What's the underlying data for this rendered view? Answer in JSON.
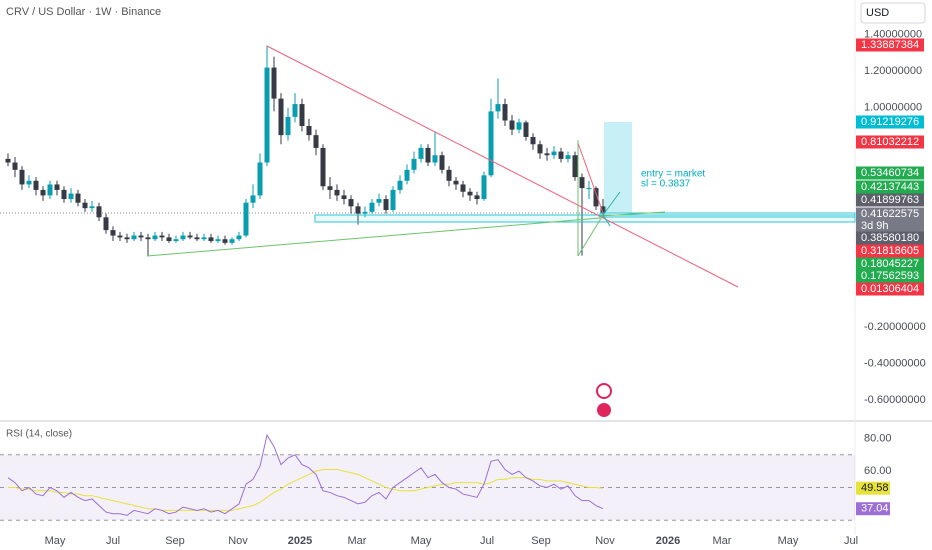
{
  "header": {
    "symbol": "CRV / US Dollar · 1W · Binance",
    "currency": "USD"
  },
  "time_axis": [
    "May",
    "Jul",
    "Sep",
    "Nov",
    "2025",
    "Mar",
    "May",
    "Jul",
    "Sep",
    "Nov",
    "2026",
    "Mar",
    "May",
    "Jul"
  ],
  "chart_data": [
    {
      "type": "candlestick",
      "ylim": [
        -0.71,
        1.59
      ],
      "yticks": [
        {
          "value": 1.4,
          "label": "1.40000000"
        },
        {
          "value": 1.2,
          "label": "1.20000000"
        },
        {
          "value": 1.0,
          "label": "1.00000000"
        },
        {
          "value": -0.2,
          "label": "-0.20000000"
        },
        {
          "value": -0.4,
          "label": "-0.40000000"
        },
        {
          "value": -0.6,
          "label": "-0.60000000"
        }
      ],
      "up_color": "#089eb0",
      "down_color": "#363a45",
      "open": [
        0.72,
        0.7,
        0.66,
        0.58,
        0.6,
        0.55,
        0.52,
        0.58,
        0.55,
        0.5,
        0.53,
        0.48,
        0.45,
        0.46,
        0.4,
        0.33,
        0.3,
        0.29,
        0.28,
        0.3,
        0.29,
        0.28,
        0.3,
        0.29,
        0.27,
        0.28,
        0.3,
        0.29,
        0.28,
        0.29,
        0.27,
        0.28,
        0.26,
        0.28,
        0.3,
        0.48,
        0.52,
        0.7,
        1.22,
        1.05,
        0.85,
        0.95,
        1.02,
        0.9,
        0.85,
        0.78,
        0.57,
        0.55,
        0.52,
        0.5,
        0.46,
        0.42,
        0.43,
        0.48,
        0.5,
        0.44,
        0.55,
        0.6,
        0.66,
        0.72,
        0.78,
        0.7,
        0.74,
        0.66,
        0.6,
        0.58,
        0.54,
        0.52,
        0.5,
        0.63,
        0.98,
        1.02,
        0.93,
        0.88,
        0.92,
        0.84,
        0.8,
        0.75,
        0.74,
        0.76,
        0.72,
        0.74,
        0.62,
        0.56,
        0.56,
        0.46
      ],
      "high": [
        0.75,
        0.73,
        0.68,
        0.63,
        0.62,
        0.57,
        0.6,
        0.6,
        0.57,
        0.56,
        0.55,
        0.5,
        0.49,
        0.48,
        0.42,
        0.35,
        0.32,
        0.31,
        0.32,
        0.32,
        0.31,
        0.32,
        0.32,
        0.31,
        0.3,
        0.32,
        0.32,
        0.31,
        0.31,
        0.31,
        0.3,
        0.3,
        0.29,
        0.32,
        0.5,
        0.58,
        0.75,
        1.34,
        1.28,
        1.08,
        1.0,
        1.08,
        1.05,
        0.94,
        0.88,
        0.8,
        0.62,
        0.58,
        0.55,
        0.52,
        0.48,
        0.46,
        0.5,
        0.53,
        0.52,
        0.57,
        0.63,
        0.69,
        0.76,
        0.8,
        0.8,
        0.87,
        0.76,
        0.68,
        0.62,
        0.6,
        0.56,
        0.54,
        0.65,
        1.05,
        1.16,
        1.05,
        0.96,
        0.94,
        0.93,
        0.86,
        0.82,
        0.78,
        0.79,
        0.78,
        0.76,
        0.76,
        0.64,
        0.6,
        0.57,
        0.5
      ],
      "low": [
        0.68,
        0.62,
        0.55,
        0.56,
        0.52,
        0.49,
        0.5,
        0.52,
        0.48,
        0.48,
        0.46,
        0.43,
        0.43,
        0.38,
        0.31,
        0.27,
        0.27,
        0.26,
        0.27,
        0.27,
        0.19,
        0.27,
        0.27,
        0.26,
        0.26,
        0.27,
        0.28,
        0.27,
        0.27,
        0.26,
        0.26,
        0.25,
        0.25,
        0.27,
        0.29,
        0.45,
        0.5,
        0.68,
        0.98,
        0.8,
        0.82,
        0.92,
        0.87,
        0.82,
        0.74,
        0.55,
        0.5,
        0.49,
        0.47,
        0.42,
        0.36,
        0.4,
        0.42,
        0.46,
        0.42,
        0.43,
        0.53,
        0.58,
        0.64,
        0.7,
        0.68,
        0.68,
        0.64,
        0.57,
        0.55,
        0.51,
        0.49,
        0.47,
        0.49,
        0.62,
        0.94,
        0.9,
        0.85,
        0.86,
        0.82,
        0.77,
        0.72,
        0.71,
        0.72,
        0.7,
        0.7,
        0.6,
        0.19,
        0.5,
        0.44,
        0.4
      ],
      "close": [
        0.7,
        0.66,
        0.58,
        0.6,
        0.55,
        0.52,
        0.58,
        0.55,
        0.5,
        0.53,
        0.48,
        0.45,
        0.46,
        0.4,
        0.33,
        0.3,
        0.29,
        0.28,
        0.3,
        0.29,
        0.28,
        0.3,
        0.29,
        0.27,
        0.28,
        0.3,
        0.29,
        0.28,
        0.29,
        0.27,
        0.28,
        0.26,
        0.28,
        0.3,
        0.48,
        0.52,
        0.7,
        1.22,
        1.05,
        0.85,
        0.95,
        1.02,
        0.9,
        0.85,
        0.78,
        0.57,
        0.55,
        0.52,
        0.5,
        0.46,
        0.42,
        0.43,
        0.48,
        0.5,
        0.44,
        0.55,
        0.6,
        0.66,
        0.72,
        0.78,
        0.7,
        0.74,
        0.66,
        0.6,
        0.58,
        0.54,
        0.52,
        0.5,
        0.63,
        0.98,
        1.02,
        0.93,
        0.88,
        0.92,
        0.84,
        0.8,
        0.75,
        0.74,
        0.76,
        0.72,
        0.74,
        0.62,
        0.56,
        0.56,
        0.46,
        0.42
      ],
      "price_tags": [
        {
          "text": "1.33887384",
          "color": "#f23645"
        },
        {
          "text": "0.91219276",
          "color": "#00bcd4"
        },
        {
          "text": "0.81032212",
          "color": "#f23645"
        },
        {
          "text": "0.53460734",
          "color": "#22ab4f"
        },
        {
          "text": "0.42137443",
          "color": "#22ab4f"
        },
        {
          "text": "0.41899763",
          "color": "#5d606b"
        },
        {
          "text": "0.41622575",
          "color": "#787b86"
        },
        {
          "text": "3d 9h",
          "color": "#787b86"
        },
        {
          "text": "0.38580180",
          "color": "#5d606b"
        },
        {
          "text": "0.31818605",
          "color": "#f23645"
        },
        {
          "text": "0.18045227",
          "color": "#22ab4f"
        },
        {
          "text": "0.17562593",
          "color": "#22ab4f"
        },
        {
          "text": "0.01306404",
          "color": "#f23645"
        }
      ],
      "annotations": [
        "entry = market",
        "sl = 0.3837"
      ]
    },
    {
      "type": "line",
      "title": "RSI (14, close)",
      "ylim": [
        21,
        90
      ],
      "yticks": [
        {
          "value": 80,
          "label": "80.00"
        },
        {
          "value": 60,
          "label": "60.00"
        }
      ],
      "levels": [
        70,
        50,
        30
      ],
      "series": [
        {
          "color": "#9c6fd6",
          "values": [
            56,
            53,
            48,
            50,
            46,
            45,
            50,
            48,
            44,
            47,
            44,
            42,
            43,
            39,
            35,
            34,
            34,
            33,
            36,
            35,
            34,
            37,
            36,
            34,
            35,
            38,
            37,
            36,
            37,
            35,
            36,
            34,
            37,
            40,
            52,
            55,
            63,
            82,
            75,
            64,
            68,
            70,
            64,
            62,
            58,
            48,
            47,
            45,
            44,
            42,
            40,
            41,
            45,
            47,
            43,
            50,
            53,
            56,
            59,
            62,
            56,
            58,
            53,
            50,
            49,
            46,
            45,
            44,
            52,
            66,
            67,
            61,
            58,
            60,
            56,
            54,
            51,
            50,
            52,
            49,
            51,
            45,
            42,
            42,
            39,
            37.04
          ]
        },
        {
          "color": "#e8e23a",
          "values": [
            50,
            50,
            49,
            49,
            48,
            48,
            48,
            47,
            47,
            46,
            46,
            45,
            45,
            44,
            43,
            42,
            41,
            40,
            39,
            38,
            37,
            37,
            36,
            36,
            36,
            36,
            36,
            36,
            36,
            36,
            36,
            36,
            36,
            37,
            38,
            39,
            41,
            44,
            47,
            49,
            52,
            54,
            56,
            58,
            60,
            61,
            61,
            61,
            60,
            59,
            58,
            56,
            54,
            52,
            50,
            49,
            48,
            48,
            48,
            49,
            50,
            51,
            52,
            52,
            53,
            53,
            53,
            53,
            52,
            53,
            55,
            55,
            56,
            56,
            56,
            55,
            55,
            54,
            54,
            54,
            53,
            52,
            51,
            50,
            50,
            49.58
          ]
        }
      ]
    }
  ]
}
